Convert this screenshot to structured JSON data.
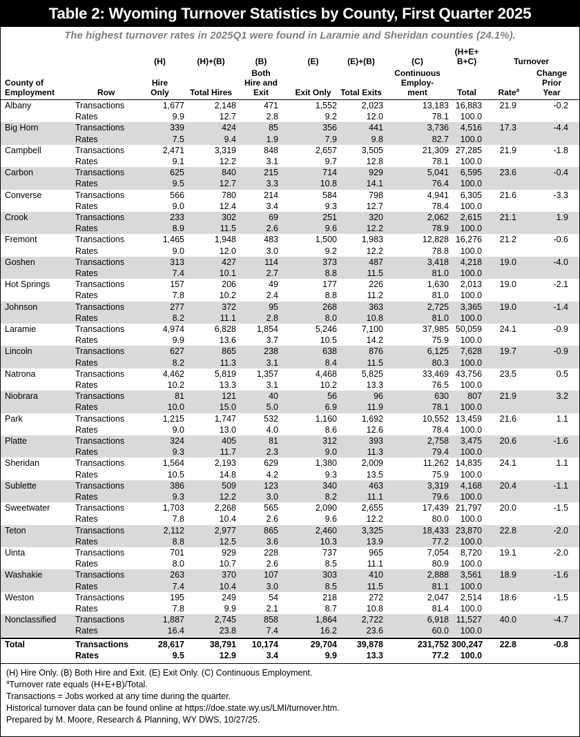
{
  "header": {
    "title": "Table 2: Wyoming Turnover Statistics by County, First Quarter 2025",
    "subtitle": "The highest turnover rates in 2025Q1 were found in Laramie and Sheridan counties (24.1%)."
  },
  "table": {
    "county_header": "County of\nEmployment",
    "row_header": "Row",
    "columns": [
      {
        "code": "(H)",
        "name": "Hire\nOnly"
      },
      {
        "code": "(H)+(B)",
        "name": "Total Hires"
      },
      {
        "code": "(B)",
        "name": "Both\nHire and\nExit"
      },
      {
        "code": "(E)",
        "name": "Exit Only"
      },
      {
        "code": "(E)+(B)",
        "name": "Total Exits"
      },
      {
        "code": "(C)",
        "name": "Continuous\nEmploy-\nment"
      },
      {
        "code": "(H+E+\nB+C)",
        "name": "Total"
      }
    ],
    "turnover_header": "Turnover",
    "rate_header": {
      "text": "Rate",
      "mark": "a"
    },
    "change_header": "Change\nPrior\nYear",
    "row_labels": [
      "Transactions",
      "Rates"
    ],
    "rows": [
      {
        "county": "Albany",
        "transactions": [
          "1,677",
          "2,148",
          "471",
          "1,552",
          "2,023",
          "13,183",
          "16,883"
        ],
        "rates": [
          "9.9",
          "12.7",
          "2.8",
          "9.2",
          "12.0",
          "78.1",
          "100.0"
        ],
        "rate": "21.9",
        "change": "-0.2"
      },
      {
        "county": "Big Horn",
        "transactions": [
          "339",
          "424",
          "85",
          "356",
          "441",
          "3,736",
          "4,516"
        ],
        "rates": [
          "7.5",
          "9.4",
          "1.9",
          "7.9",
          "9.8",
          "82.7",
          "100.0"
        ],
        "rate": "17.3",
        "change": "-4.4"
      },
      {
        "county": "Campbell",
        "transactions": [
          "2,471",
          "3,319",
          "848",
          "2,657",
          "3,505",
          "21,309",
          "27,285"
        ],
        "rates": [
          "9.1",
          "12.2",
          "3.1",
          "9.7",
          "12.8",
          "78.1",
          "100.0"
        ],
        "rate": "21.9",
        "change": "-1.8"
      },
      {
        "county": "Carbon",
        "transactions": [
          "625",
          "840",
          "215",
          "714",
          "929",
          "5,041",
          "6,595"
        ],
        "rates": [
          "9.5",
          "12.7",
          "3.3",
          "10.8",
          "14.1",
          "76.4",
          "100.0"
        ],
        "rate": "23.6",
        "change": "-0.4"
      },
      {
        "county": "Converse",
        "transactions": [
          "566",
          "780",
          "214",
          "584",
          "798",
          "4,941",
          "6,305"
        ],
        "rates": [
          "9.0",
          "12.4",
          "3.4",
          "9.3",
          "12.7",
          "78.4",
          "100.0"
        ],
        "rate": "21.6",
        "change": "-3.3"
      },
      {
        "county": "Crook",
        "transactions": [
          "233",
          "302",
          "69",
          "251",
          "320",
          "2,062",
          "2,615"
        ],
        "rates": [
          "8.9",
          "11.5",
          "2.6",
          "9.6",
          "12.2",
          "78.9",
          "100.0"
        ],
        "rate": "21.1",
        "change": "1.9"
      },
      {
        "county": "Fremont",
        "transactions": [
          "1,465",
          "1,948",
          "483",
          "1,500",
          "1,983",
          "12,828",
          "16,276"
        ],
        "rates": [
          "9.0",
          "12.0",
          "3.0",
          "9.2",
          "12.2",
          "78.8",
          "100.0"
        ],
        "rate": "21.2",
        "change": "-0.6"
      },
      {
        "county": "Goshen",
        "transactions": [
          "313",
          "427",
          "114",
          "373",
          "487",
          "3,418",
          "4,218"
        ],
        "rates": [
          "7.4",
          "10.1",
          "2.7",
          "8.8",
          "11.5",
          "81.0",
          "100.0"
        ],
        "rate": "19.0",
        "change": "-4.0"
      },
      {
        "county": "Hot Springs",
        "transactions": [
          "157",
          "206",
          "49",
          "177",
          "226",
          "1,630",
          "2,013"
        ],
        "rates": [
          "7.8",
          "10.2",
          "2.4",
          "8.8",
          "11.2",
          "81.0",
          "100.0"
        ],
        "rate": "19.0",
        "change": "-2.1"
      },
      {
        "county": "Johnson",
        "transactions": [
          "277",
          "372",
          "95",
          "268",
          "363",
          "2,725",
          "3,365"
        ],
        "rates": [
          "8.2",
          "11.1",
          "2.8",
          "8.0",
          "10.8",
          "81.0",
          "100.0"
        ],
        "rate": "19.0",
        "change": "-1.4"
      },
      {
        "county": "Laramie",
        "transactions": [
          "4,974",
          "6,828",
          "1,854",
          "5,246",
          "7,100",
          "37,985",
          "50,059"
        ],
        "rates": [
          "9.9",
          "13.6",
          "3.7",
          "10.5",
          "14.2",
          "75.9",
          "100.0"
        ],
        "rate": "24.1",
        "change": "-0.9"
      },
      {
        "county": "Lincoln",
        "transactions": [
          "627",
          "865",
          "238",
          "638",
          "876",
          "6,125",
          "7,628"
        ],
        "rates": [
          "8.2",
          "11.3",
          "3.1",
          "8.4",
          "11.5",
          "80.3",
          "100.0"
        ],
        "rate": "19.7",
        "change": "-0.9"
      },
      {
        "county": "Natrona",
        "transactions": [
          "4,462",
          "5,819",
          "1,357",
          "4,468",
          "5,825",
          "33,469",
          "43,756"
        ],
        "rates": [
          "10.2",
          "13.3",
          "3.1",
          "10.2",
          "13.3",
          "76.5",
          "100.0"
        ],
        "rate": "23.5",
        "change": "0.5"
      },
      {
        "county": "Niobrara",
        "transactions": [
          "81",
          "121",
          "40",
          "56",
          "96",
          "630",
          "807"
        ],
        "rates": [
          "10.0",
          "15.0",
          "5.0",
          "6.9",
          "11.9",
          "78.1",
          "100.0"
        ],
        "rate": "21.9",
        "change": "3.2"
      },
      {
        "county": "Park",
        "transactions": [
          "1,215",
          "1,747",
          "532",
          "1,160",
          "1,692",
          "10,552",
          "13,459"
        ],
        "rates": [
          "9.0",
          "13.0",
          "4.0",
          "8.6",
          "12.6",
          "78.4",
          "100.0"
        ],
        "rate": "21.6",
        "change": "1.1"
      },
      {
        "county": "Platte",
        "transactions": [
          "324",
          "405",
          "81",
          "312",
          "393",
          "2,758",
          "3,475"
        ],
        "rates": [
          "9.3",
          "11.7",
          "2.3",
          "9.0",
          "11.3",
          "79.4",
          "100.0"
        ],
        "rate": "20.6",
        "change": "-1.6"
      },
      {
        "county": "Sheridan",
        "transactions": [
          "1,564",
          "2,193",
          "629",
          "1,380",
          "2,009",
          "11,262",
          "14,835"
        ],
        "rates": [
          "10.5",
          "14.8",
          "4.2",
          "9.3",
          "13.5",
          "75.9",
          "100.0"
        ],
        "rate": "24.1",
        "change": "1.1"
      },
      {
        "county": "Sublette",
        "transactions": [
          "386",
          "509",
          "123",
          "340",
          "463",
          "3,319",
          "4,168"
        ],
        "rates": [
          "9.3",
          "12.2",
          "3.0",
          "8.2",
          "11.1",
          "79.6",
          "100.0"
        ],
        "rate": "20.4",
        "change": "-1.1"
      },
      {
        "county": "Sweetwater",
        "transactions": [
          "1,703",
          "2,268",
          "565",
          "2,090",
          "2,655",
          "17,439",
          "21,797"
        ],
        "rates": [
          "7.8",
          "10.4",
          "2.6",
          "9.6",
          "12.2",
          "80.0",
          "100.0"
        ],
        "rate": "20.0",
        "change": "-1.5"
      },
      {
        "county": "Teton",
        "transactions": [
          "2,112",
          "2,977",
          "865",
          "2,460",
          "3,325",
          "18,433",
          "23,870"
        ],
        "rates": [
          "8.8",
          "12.5",
          "3.6",
          "10.3",
          "13.9",
          "77.2",
          "100.0"
        ],
        "rate": "22.8",
        "change": "-2.0"
      },
      {
        "county": "Uinta",
        "transactions": [
          "701",
          "929",
          "228",
          "737",
          "965",
          "7,054",
          "8,720"
        ],
        "rates": [
          "8.0",
          "10.7",
          "2.6",
          "8.5",
          "11.1",
          "80.9",
          "100.0"
        ],
        "rate": "19.1",
        "change": "-2.0"
      },
      {
        "county": "Washakie",
        "transactions": [
          "263",
          "370",
          "107",
          "303",
          "410",
          "2,888",
          "3,561"
        ],
        "rates": [
          "7.4",
          "10.4",
          "3.0",
          "8.5",
          "11.5",
          "81.1",
          "100.0"
        ],
        "rate": "18.9",
        "change": "-1.6"
      },
      {
        "county": "Weston",
        "transactions": [
          "195",
          "249",
          "54",
          "218",
          "272",
          "2,047",
          "2,514"
        ],
        "rates": [
          "7.8",
          "9.9",
          "2.1",
          "8.7",
          "10.8",
          "81.4",
          "100.0"
        ],
        "rate": "18.6",
        "change": "-1.5"
      },
      {
        "county": "Nonclassified",
        "transactions": [
          "1,887",
          "2,745",
          "858",
          "1,864",
          "2,722",
          "6,918",
          "11,527"
        ],
        "rates": [
          "16.4",
          "23.8",
          "7.4",
          "16.2",
          "23.6",
          "60.0",
          "100.0"
        ],
        "rate": "40.0",
        "change": "-4.7"
      }
    ],
    "total": {
      "county": "Total",
      "transactions": [
        "28,617",
        "38,791",
        "10,174",
        "29,704",
        "39,878",
        "231,752",
        "300,247"
      ],
      "rates": [
        "9.5",
        "12.9",
        "3.4",
        "9.9",
        "13.3",
        "77.2",
        "100.0"
      ],
      "rate": "22.8",
      "change": "-0.8"
    }
  },
  "footnotes": [
    {
      "text": "(H) Hire Only. (B) Both Hire and Exit. (E) Exit Only. (C) Continuous Employment."
    },
    {
      "mark": "a",
      "text": "Turnover rate equals (H+E+B)/Total."
    },
    {
      "text": "Transactions = Jobs worked at any time during the quarter."
    },
    {
      "text": "Historical turnover data can be found online at https://doe.state.wy.us/LMI/turnover.htm."
    },
    {
      "text": "Prepared by M. Moore, Research & Planning, WY DWS, 10/27/25."
    }
  ]
}
